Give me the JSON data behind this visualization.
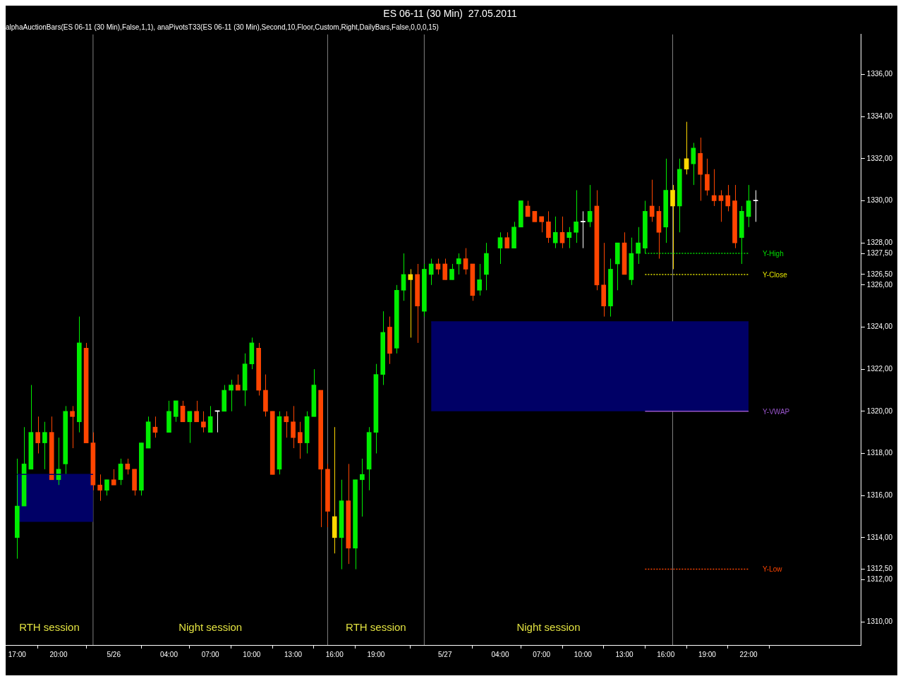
{
  "chart_data": {
    "type": "candlestick",
    "title": "ES 06-11 (30 Min)  27.05.2011",
    "subtitle": "alphaAuctionBars(ES 06-11 (30 Min),False,1,1), anaPivotsT33(ES 06-11 (30 Min),Second,10,Floor,Custom,Right,DailyBars,False,0,0,0,15)",
    "x": [
      "2011-05-25T17:00",
      "2011-05-25T17:30",
      "2011-05-25T18:00",
      "2011-05-25T18:30",
      "2011-05-25T19:00",
      "2011-05-25T19:30",
      "2011-05-25T20:00",
      "2011-05-25T20:30",
      "2011-05-25T21:00",
      "2011-05-25T21:30",
      "2011-05-25T22:00",
      "2011-05-25T22:30",
      "2011-05-25T23:00",
      "2011-05-25T23:30",
      "2011-05-26T00:00",
      "2011-05-26T00:30",
      "2011-05-26T01:00",
      "2011-05-26T01:30",
      "2011-05-26T02:00",
      "2011-05-26T02:30",
      "2011-05-26T03:00",
      "2011-05-26T04:00",
      "2011-05-26T04:30",
      "2011-05-26T05:00",
      "2011-05-26T05:30",
      "2011-05-26T06:00",
      "2011-05-26T06:30",
      "2011-05-26T07:00",
      "2011-05-26T07:30",
      "2011-05-26T08:00",
      "2011-05-26T08:30",
      "2011-05-26T09:00",
      "2011-05-26T09:30",
      "2011-05-26T10:00",
      "2011-05-26T10:30",
      "2011-05-26T11:00",
      "2011-05-26T11:30",
      "2011-05-26T12:00",
      "2011-05-26T12:30",
      "2011-05-26T13:00",
      "2011-05-26T13:30",
      "2011-05-26T14:00",
      "2011-05-26T14:30",
      "2011-05-26T15:00",
      "2011-05-26T15:30",
      "2011-05-26T16:00",
      "2011-05-26T16:30",
      "2011-05-26T17:00",
      "2011-05-26T17:30",
      "2011-05-26T18:00",
      "2011-05-26T18:30",
      "2011-05-26T19:00",
      "2011-05-26T19:30",
      "2011-05-26T20:00",
      "2011-05-26T20:30",
      "2011-05-26T21:00",
      "2011-05-26T21:30",
      "2011-05-26T22:00",
      "2011-05-26T22:30",
      "2011-05-26T23:00",
      "2011-05-26T23:30",
      "2011-05-27T00:00",
      "2011-05-27T00:30",
      "2011-05-27T01:00",
      "2011-05-27T01:30",
      "2011-05-27T02:00",
      "2011-05-27T02:30",
      "2011-05-27T03:00",
      "2011-05-27T04:00",
      "2011-05-27T04:30",
      "2011-05-27T05:00",
      "2011-05-27T05:30",
      "2011-05-27T06:00",
      "2011-05-27T06:30",
      "2011-05-27T07:00",
      "2011-05-27T07:30",
      "2011-05-27T08:00",
      "2011-05-27T08:30",
      "2011-05-27T09:00",
      "2011-05-27T09:30",
      "2011-05-27T10:00",
      "2011-05-27T10:30",
      "2011-05-27T11:00",
      "2011-05-27T11:30",
      "2011-05-27T12:00",
      "2011-05-27T12:30",
      "2011-05-27T13:00",
      "2011-05-27T13:30",
      "2011-05-27T14:00",
      "2011-05-27T14:30",
      "2011-05-27T15:00",
      "2011-05-27T15:30",
      "2011-05-27T16:00",
      "2011-05-27T16:30",
      "2011-05-27T17:00",
      "2011-05-27T17:30",
      "2011-05-27T18:00",
      "2011-05-27T18:30",
      "2011-05-27T19:00",
      "2011-05-27T19:30",
      "2011-05-27T20:00",
      "2011-05-27T20:30",
      "2011-05-27T21:00",
      "2011-05-27T21:30",
      "2011-05-27T22:00",
      "2011-05-27T22:30"
    ],
    "ohlc": [
      [
        1314,
        1317.75,
        1313,
        1315.5
      ],
      [
        1315.5,
        1319.25,
        1315.5,
        1317.5
      ],
      [
        1317.25,
        1321.25,
        1317.25,
        1319
      ],
      [
        1319,
        1319.75,
        1318,
        1318.5
      ],
      [
        1318.5,
        1319.5,
        1317.25,
        1319
      ],
      [
        1319,
        1319.75,
        1316.75,
        1316.75
      ],
      [
        1316.75,
        1318.75,
        1316.5,
        1317.25
      ],
      [
        1317.5,
        1320.25,
        1317,
        1320
      ],
      [
        1320,
        1320.25,
        1318.25,
        1319.75
      ],
      [
        1319.5,
        1324.5,
        1319,
        1323.25
      ],
      [
        1323,
        1323.25,
        1318.5,
        1318.5
      ],
      [
        1318.5,
        1319,
        1316.25,
        1316.5
      ],
      [
        1316.5,
        1317,
        1315.75,
        1316.25
      ],
      [
        1316.25,
        1316.75,
        1316,
        1316.75
      ],
      [
        1316.75,
        1317.25,
        1316.5,
        1316.5
      ],
      [
        1316.75,
        1317.75,
        1316.5,
        1317.5
      ],
      [
        1317.5,
        1317.75,
        1317,
        1317.25
      ],
      [
        1317.25,
        1317.25,
        1316,
        1316.25
      ],
      [
        1316.25,
        1318.5,
        1316,
        1318.5
      ],
      [
        1318.25,
        1319.75,
        1318.25,
        1319.5
      ],
      [
        1319.25,
        1319.75,
        1318.75,
        1319
      ],
      [
        1319,
        1320.5,
        1319,
        1320
      ],
      [
        1319.75,
        1320.5,
        1319.5,
        1320.5
      ],
      [
        1320.25,
        1320.5,
        1319.5,
        1319.5
      ],
      [
        1319.5,
        1320,
        1318.5,
        1320
      ],
      [
        1320,
        1320.5,
        1319.5,
        1319.5
      ],
      [
        1319.5,
        1320,
        1319,
        1319.25
      ],
      [
        1319,
        1320.25,
        1319,
        1319.75
      ],
      [
        1320,
        1320,
        1319,
        1320
      ],
      [
        1320,
        1321.25,
        1320,
        1321
      ],
      [
        1321,
        1321.5,
        1320,
        1321.25
      ],
      [
        1321.25,
        1321.75,
        1321,
        1321
      ],
      [
        1321,
        1322.75,
        1320.25,
        1322.25
      ],
      [
        1322.25,
        1323.5,
        1322,
        1323.25
      ],
      [
        1323,
        1323.25,
        1320.75,
        1321
      ],
      [
        1321,
        1321.75,
        1319.75,
        1320
      ],
      [
        1320,
        1320,
        1317,
        1317
      ],
      [
        1317.25,
        1320,
        1317,
        1319.75
      ],
      [
        1319.75,
        1320,
        1318.75,
        1319.5
      ],
      [
        1319.5,
        1320.25,
        1318.25,
        1318.75
      ],
      [
        1319,
        1319.5,
        1317.75,
        1318.5
      ],
      [
        1318.5,
        1320,
        1318,
        1319.75
      ],
      [
        1319.75,
        1322,
        1319.75,
        1321.25
      ],
      [
        1321,
        1321,
        1314.5,
        1317.25
      ],
      [
        1317.25,
        1317.5,
        1314.5,
        1315.25
      ],
      [
        1315,
        1319.25,
        1313.25,
        1314
      ],
      [
        1314,
        1316.75,
        1312.5,
        1315.75
      ],
      [
        1315.75,
        1317.5,
        1312.75,
        1313.5
      ],
      [
        1313.5,
        1316.75,
        1312.5,
        1316.75
      ],
      [
        1316.75,
        1317.75,
        1315,
        1317
      ],
      [
        1317.25,
        1319.25,
        1316.25,
        1319
      ],
      [
        1319,
        1322.25,
        1318,
        1321.75
      ],
      [
        1321.75,
        1324.75,
        1321.25,
        1323.75
      ],
      [
        1324,
        1324.5,
        1322.25,
        1322.75
      ],
      [
        1323,
        1326,
        1322.75,
        1325.75
      ],
      [
        1325.75,
        1327.5,
        1325.25,
        1326.5
      ],
      [
        1326.5,
        1326.75,
        1323.5,
        1326.25
      ],
      [
        1326.5,
        1327,
        1323.25,
        1325
      ],
      [
        1324.75,
        1327,
        1324.5,
        1326.75
      ],
      [
        1326.5,
        1327.25,
        1326,
        1327
      ],
      [
        1327,
        1327.25,
        1326.5,
        1326.75
      ],
      [
        1327,
        1327.25,
        1326.25,
        1326.25
      ],
      [
        1326.25,
        1327,
        1326.25,
        1326.75
      ],
      [
        1327,
        1327.5,
        1326.5,
        1327.25
      ],
      [
        1327.25,
        1327.75,
        1326.5,
        1326.75
      ],
      [
        1327,
        1327,
        1325.25,
        1325.5
      ],
      [
        1325.75,
        1327,
        1325.5,
        1326.25
      ],
      [
        1326.5,
        1328,
        1325.75,
        1327.5
      ],
      [
        1327.75,
        1328.5,
        1327,
        1328.25
      ],
      [
        1328.25,
        1328.5,
        1327.75,
        1327.75
      ],
      [
        1327.75,
        1329,
        1327.75,
        1328.75
      ],
      [
        1328.75,
        1330,
        1328.75,
        1330
      ],
      [
        1329.75,
        1330,
        1329.25,
        1329.25
      ],
      [
        1329.5,
        1329.5,
        1329,
        1329
      ],
      [
        1329.25,
        1329.25,
        1328.5,
        1329
      ],
      [
        1329,
        1329.5,
        1328,
        1328.25
      ],
      [
        1328,
        1329.25,
        1327.75,
        1328.5
      ],
      [
        1328.5,
        1329.25,
        1327.75,
        1328
      ],
      [
        1328.25,
        1328.75,
        1327.75,
        1328.5
      ],
      [
        1328.5,
        1330.5,
        1328,
        1329
      ],
      [
        1329,
        1329.5,
        1327.75,
        1329
      ],
      [
        1329,
        1330.75,
        1328.75,
        1329.5
      ],
      [
        1329.75,
        1330.5,
        1325.75,
        1326
      ],
      [
        1326,
        1328,
        1324.5,
        1325
      ],
      [
        1325,
        1327.25,
        1324.5,
        1326.75
      ],
      [
        1327,
        1328,
        1325.75,
        1328
      ],
      [
        1328,
        1328.5,
        1326.5,
        1326.5
      ],
      [
        1326.25,
        1328.25,
        1326,
        1327.5
      ],
      [
        1327.5,
        1328.75,
        1327,
        1328
      ],
      [
        1327.75,
        1330,
        1327.5,
        1329.5
      ],
      [
        1329.75,
        1331,
        1329,
        1329.25
      ],
      [
        1329.5,
        1329.75,
        1327.25,
        1328.5
      ],
      [
        1328.75,
        1332,
        1328,
        1330.5
      ],
      [
        1330.5,
        1330.75,
        1326.75,
        1329.75
      ],
      [
        1329.75,
        1332,
        1328.5,
        1331.5
      ],
      [
        1331.5,
        1333.75,
        1331.25,
        1332
      ],
      [
        1331.75,
        1332.75,
        1330.75,
        1332.5
      ],
      [
        1332.25,
        1333,
        1330,
        1331.25
      ],
      [
        1331.25,
        1332,
        1330.25,
        1330.5
      ],
      [
        1330.25,
        1331.5,
        1329.75,
        1330
      ],
      [
        1330.25,
        1330.5,
        1329,
        1330
      ],
      [
        1330.25,
        1330.75,
        1329.5,
        1329.75
      ],
      [
        1330,
        1330.75,
        1327.75,
        1328
      ],
      [
        1328.25,
        1329.75,
        1327,
        1329.5
      ],
      [
        1329.25,
        1330.75,
        1328.75,
        1330
      ],
      [
        1330,
        1330.5,
        1329,
        1330
      ]
    ],
    "colors": [
      "#00ee00",
      "#00ee00",
      "#00ee00",
      "#ff4500",
      "#00ee00",
      "#ff4500",
      "#00ee00",
      "#00ee00",
      "#ff4500",
      "#00ee00",
      "#ff4500",
      "#ff4500",
      "#ff4500",
      "#00ee00",
      "#ff4500",
      "#00ee00",
      "#ff4500",
      "#ff4500",
      "#00ee00",
      "#00ee00",
      "#ff4500",
      "#00ee00",
      "#00ee00",
      "#ff4500",
      "#00ee00",
      "#ff4500",
      "#ff4500",
      "#00ee00",
      "#ffffff",
      "#00ee00",
      "#00ee00",
      "#ff4500",
      "#00ee00",
      "#00ee00",
      "#ff4500",
      "#ff4500",
      "#ff4500",
      "#00ee00",
      "#ff4500",
      "#ff4500",
      "#ff4500",
      "#00ee00",
      "#00ee00",
      "#ff4500",
      "#ff4500",
      "#ffd700",
      "#00ee00",
      "#ff4500",
      "#00ee00",
      "#00ee00",
      "#00ee00",
      "#00ee00",
      "#00ee00",
      "#ff4500",
      "#00ee00",
      "#00ee00",
      "#ffd700",
      "#ff4500",
      "#00ee00",
      "#00ee00",
      "#ff4500",
      "#ff4500",
      "#00ee00",
      "#00ee00",
      "#ff4500",
      "#ff4500",
      "#00ee00",
      "#00ee00",
      "#00ee00",
      "#ff4500",
      "#00ee00",
      "#00ee00",
      "#ff4500",
      "#ff4500",
      "#ff4500",
      "#ff4500",
      "#00ee00",
      "#ff4500",
      "#00ee00",
      "#00ee00",
      "#ffffff",
      "#00ee00",
      "#ff4500",
      "#ff4500",
      "#00ee00",
      "#00ee00",
      "#ff4500",
      "#00ee00",
      "#00ee00",
      "#00ee00",
      "#ff4500",
      "#ff4500",
      "#00ee00",
      "#ffd700",
      "#00ee00",
      "#ffd700",
      "#00ee00",
      "#ff4500",
      "#ff4500",
      "#ff4500",
      "#ff4500",
      "#ff4500",
      "#ff4500",
      "#00ee00",
      "#00ee00",
      "#ffffff"
    ],
    "series": [
      {
        "type": "line",
        "color": "#000066",
        "x": [
          "2011-05-25T17:00",
          "2011-05-25T22:30"
        ],
        "values": [
          1317,
          1317
        ],
        "lower": [
          1314.75,
          1314.75
        ],
        "upper": [
          1317,
          1317
        ]
      },
      {
        "type": "line",
        "color": "#000066",
        "x": [
          "2011-05-26T23:00",
          "2011-05-27T22:00"
        ],
        "values": [
          1324.25,
          1324.25
        ],
        "lower": [
          1320,
          1320
        ],
        "upper": [
          1324.25,
          1324.25
        ]
      },
      {
        "type": "line",
        "name": "Y-High",
        "color": "#00dd00",
        "line_style": "dotted",
        "x": [
          "2011-05-27T14:30",
          "2011-05-27T22:00"
        ],
        "values": [
          1327.5,
          1327.5
        ]
      },
      {
        "type": "line",
        "name": "Y-Close",
        "color": "#e6e600",
        "line_style": "dotted",
        "x": [
          "2011-05-27T14:30",
          "2011-05-27T22:00"
        ],
        "values": [
          1326.5,
          1326.5
        ]
      },
      {
        "type": "line",
        "name": "Y-VWAP",
        "color": "#9955cc",
        "line_style": "solid",
        "x": [
          "2011-05-27T14:30",
          "2011-05-27T22:00"
        ],
        "values": [
          1320,
          1320
        ]
      },
      {
        "type": "line",
        "name": "Y-Low",
        "color": "#ff4500",
        "line_style": "dotted",
        "x": [
          "2011-05-27T14:30",
          "2011-05-27T22:00"
        ],
        "values": [
          1312.5,
          1312.5
        ]
      }
    ],
    "ref_lines": [
      {
        "axis": "x",
        "value": "2011-05-25T22:30",
        "color": "#808080"
      },
      {
        "axis": "x",
        "value": "2011-05-26T15:30",
        "color": "#808080"
      },
      {
        "axis": "x",
        "value": "2011-05-26T22:30",
        "color": "#808080"
      },
      {
        "axis": "x",
        "value": "2011-05-27T16:30",
        "color": "#808080"
      }
    ],
    "annotations": [
      "RTH session",
      "Night session",
      "RTH session",
      "Night session"
    ],
    "xlim": [
      "2011-05-25T16:10",
      "2011-05-28T06:10"
    ],
    "xticks": [
      {
        "value": "2011-05-25T17:00",
        "label": "17:00"
      },
      {
        "value": "2011-05-25T20:00",
        "label": "20:00"
      },
      {
        "value": "2011-05-26T00:00",
        "label": "5/26"
      },
      {
        "value": "2011-05-26T04:00",
        "label": "04:00"
      },
      {
        "value": "2011-05-26T07:00",
        "label": "07:00"
      },
      {
        "value": "2011-05-26T10:00",
        "label": "10:00"
      },
      {
        "value": "2011-05-26T13:00",
        "label": "13:00"
      },
      {
        "value": "2011-05-26T16:00",
        "label": "16:00"
      },
      {
        "value": "2011-05-26T19:00",
        "label": "19:00"
      },
      {
        "value": "2011-05-27T00:00",
        "label": "5/27"
      },
      {
        "value": "2011-05-27T04:00",
        "label": "04:00"
      },
      {
        "value": "2011-05-27T07:00",
        "label": "07:00"
      },
      {
        "value": "2011-05-27T10:00",
        "label": "10:00"
      },
      {
        "value": "2011-05-27T13:00",
        "label": "13:00"
      },
      {
        "value": "2011-05-27T16:00",
        "label": "16:00"
      },
      {
        "value": "2011-05-27T19:00",
        "label": "19:00"
      },
      {
        "value": "2011-05-27T22:00",
        "label": "22:00"
      }
    ],
    "ylim": [
      1308.9,
      1337.9
    ],
    "yticks": [
      {
        "value": 1310,
        "label": "1310,00"
      },
      {
        "value": 1312,
        "label": "1312,00"
      },
      {
        "value": 1312.5,
        "label": "1312,50"
      },
      {
        "value": 1314,
        "label": "1314,00"
      },
      {
        "value": 1316,
        "label": "1316,00"
      },
      {
        "value": 1318,
        "label": "1318,00"
      },
      {
        "value": 1320,
        "label": "1320,00"
      },
      {
        "value": 1322,
        "label": "1322,00"
      },
      {
        "value": 1324,
        "label": "1324,00"
      },
      {
        "value": 1326,
        "label": "1326,00"
      },
      {
        "value": 1326.5,
        "label": "1326,50"
      },
      {
        "value": 1327.5,
        "label": "1327,50"
      },
      {
        "value": 1328,
        "label": "1328,00"
      },
      {
        "value": 1330,
        "label": "1330,00"
      },
      {
        "value": 1332,
        "label": "1332,00"
      },
      {
        "value": 1334,
        "label": "1334,00"
      },
      {
        "value": 1336,
        "label": "1336,00"
      }
    ],
    "grid": false,
    "legend": false
  }
}
